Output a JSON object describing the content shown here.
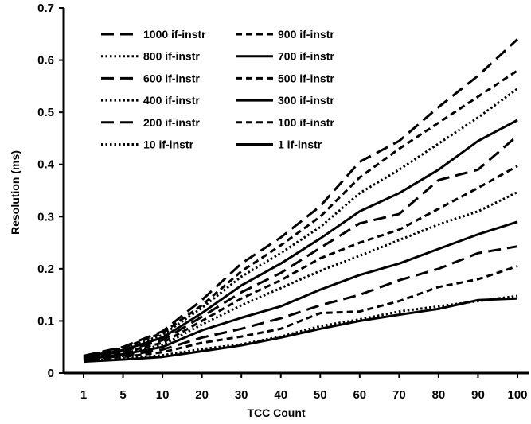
{
  "chart_data": {
    "type": "line",
    "xlabel": "TCC Count",
    "ylabel": "Resolution (ms)",
    "categories": [
      "1",
      "5",
      "10",
      "20",
      "30",
      "40",
      "50",
      "60",
      "70",
      "80",
      "90",
      "100"
    ],
    "ylim": [
      0,
      0.7
    ],
    "yticks": [
      "0",
      "0.1",
      "0.2",
      "0.3",
      "0.4",
      "0.5",
      "0.6",
      "0.7"
    ],
    "grid": false,
    "legend_position": "top-left",
    "series": [
      {
        "name": "1000 if-instr",
        "style": "long-dash",
        "values": [
          0.033,
          0.05,
          0.08,
          0.14,
          0.21,
          0.26,
          0.32,
          0.405,
          0.445,
          0.51,
          0.57,
          0.64
        ]
      },
      {
        "name": "900 if-instr",
        "style": "short-dash",
        "values": [
          0.032,
          0.048,
          0.077,
          0.13,
          0.195,
          0.245,
          0.3,
          0.375,
          0.43,
          0.48,
          0.53,
          0.58
        ]
      },
      {
        "name": "800 if-instr",
        "style": "dotted",
        "values": [
          0.031,
          0.046,
          0.073,
          0.125,
          0.185,
          0.23,
          0.28,
          0.345,
          0.39,
          0.44,
          0.49,
          0.545
        ]
      },
      {
        "name": "700 if-instr",
        "style": "solid",
        "values": [
          0.03,
          0.044,
          0.068,
          0.115,
          0.168,
          0.21,
          0.258,
          0.31,
          0.345,
          0.39,
          0.445,
          0.485
        ]
      },
      {
        "name": "600 if-instr",
        "style": "long-dash",
        "values": [
          0.029,
          0.042,
          0.063,
          0.108,
          0.155,
          0.192,
          0.24,
          0.287,
          0.305,
          0.37,
          0.39,
          0.455
        ]
      },
      {
        "name": "500 if-instr",
        "style": "short-dash",
        "values": [
          0.028,
          0.04,
          0.058,
          0.1,
          0.143,
          0.178,
          0.22,
          0.25,
          0.275,
          0.315,
          0.355,
          0.397
        ]
      },
      {
        "name": "400 if-instr",
        "style": "dotted",
        "values": [
          0.027,
          0.038,
          0.054,
          0.093,
          0.13,
          0.163,
          0.196,
          0.225,
          0.255,
          0.285,
          0.31,
          0.347
        ]
      },
      {
        "name": "300 if-instr",
        "style": "solid",
        "values": [
          0.026,
          0.036,
          0.05,
          0.082,
          0.106,
          0.128,
          0.16,
          0.188,
          0.21,
          0.238,
          0.266,
          0.29
        ]
      },
      {
        "name": "200 if-instr",
        "style": "long-dash",
        "values": [
          0.025,
          0.033,
          0.045,
          0.068,
          0.085,
          0.105,
          0.13,
          0.15,
          0.178,
          0.2,
          0.23,
          0.243
        ]
      },
      {
        "name": "100 if-instr",
        "style": "short-dash",
        "values": [
          0.024,
          0.031,
          0.04,
          0.058,
          0.07,
          0.085,
          0.115,
          0.118,
          0.138,
          0.165,
          0.18,
          0.205
        ]
      },
      {
        "name": "10 if-instr",
        "style": "dotted",
        "values": [
          0.023,
          0.028,
          0.034,
          0.046,
          0.055,
          0.07,
          0.09,
          0.103,
          0.118,
          0.128,
          0.138,
          0.148
        ]
      },
      {
        "name": "1 if-instr",
        "style": "solid",
        "values": [
          0.022,
          0.026,
          0.031,
          0.042,
          0.053,
          0.068,
          0.085,
          0.1,
          0.112,
          0.123,
          0.14,
          0.143
        ]
      }
    ]
  }
}
